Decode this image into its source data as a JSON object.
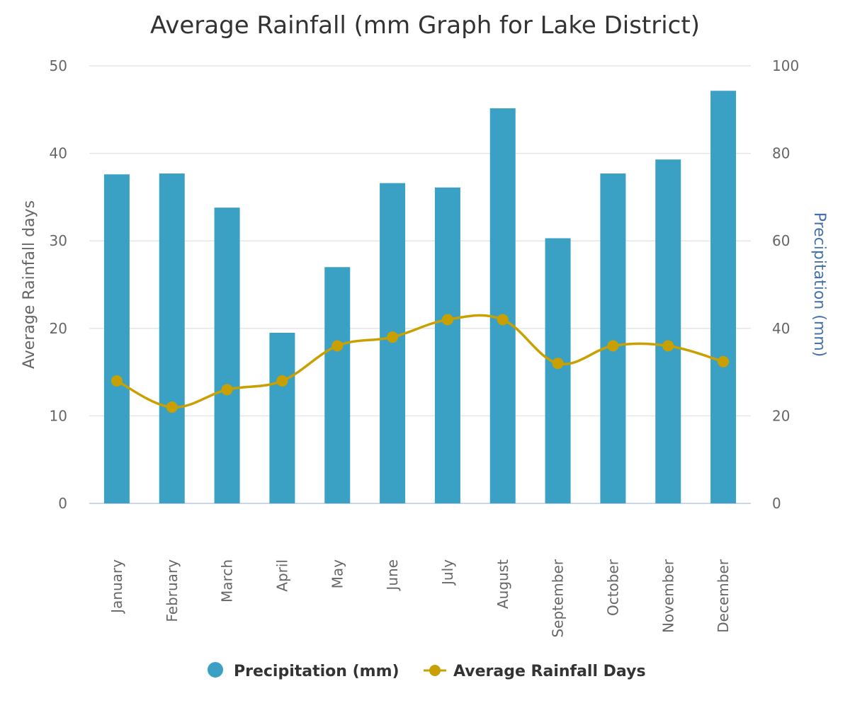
{
  "chart_data": {
    "type": "bar",
    "title": "Average Rainfall (mm Graph for Lake District)",
    "categories": [
      "January",
      "February",
      "March",
      "April",
      "May",
      "June",
      "July",
      "August",
      "September",
      "October",
      "November",
      "December"
    ],
    "series": [
      {
        "name": "Precipitation (mm)",
        "type": "bar",
        "axis": "right",
        "color": "#3aa1c4",
        "values": [
          75.2,
          75.4,
          67.6,
          39.0,
          54.0,
          73.2,
          72.2,
          90.3,
          60.6,
          75.4,
          78.6,
          94.3
        ]
      },
      {
        "name": "Average Rainfall Days",
        "type": "line",
        "axis": "left",
        "color": "#c9a002",
        "values": [
          14,
          11,
          13,
          14,
          18,
          19,
          21,
          21,
          16,
          18,
          18,
          16.2
        ]
      }
    ],
    "y_left": {
      "label": "Average Rainfall days",
      "min": 0,
      "max": 50,
      "ticks": [
        "0",
        "10",
        "20",
        "30",
        "40",
        "50"
      ]
    },
    "y_right": {
      "label": "Precipitation (mm)",
      "min": 0,
      "max": 100,
      "ticks": [
        "0",
        "20",
        "40",
        "60",
        "80",
        "100"
      ],
      "label_color": "#4572a7"
    },
    "grid": true,
    "legend_position": "bottom-center"
  }
}
